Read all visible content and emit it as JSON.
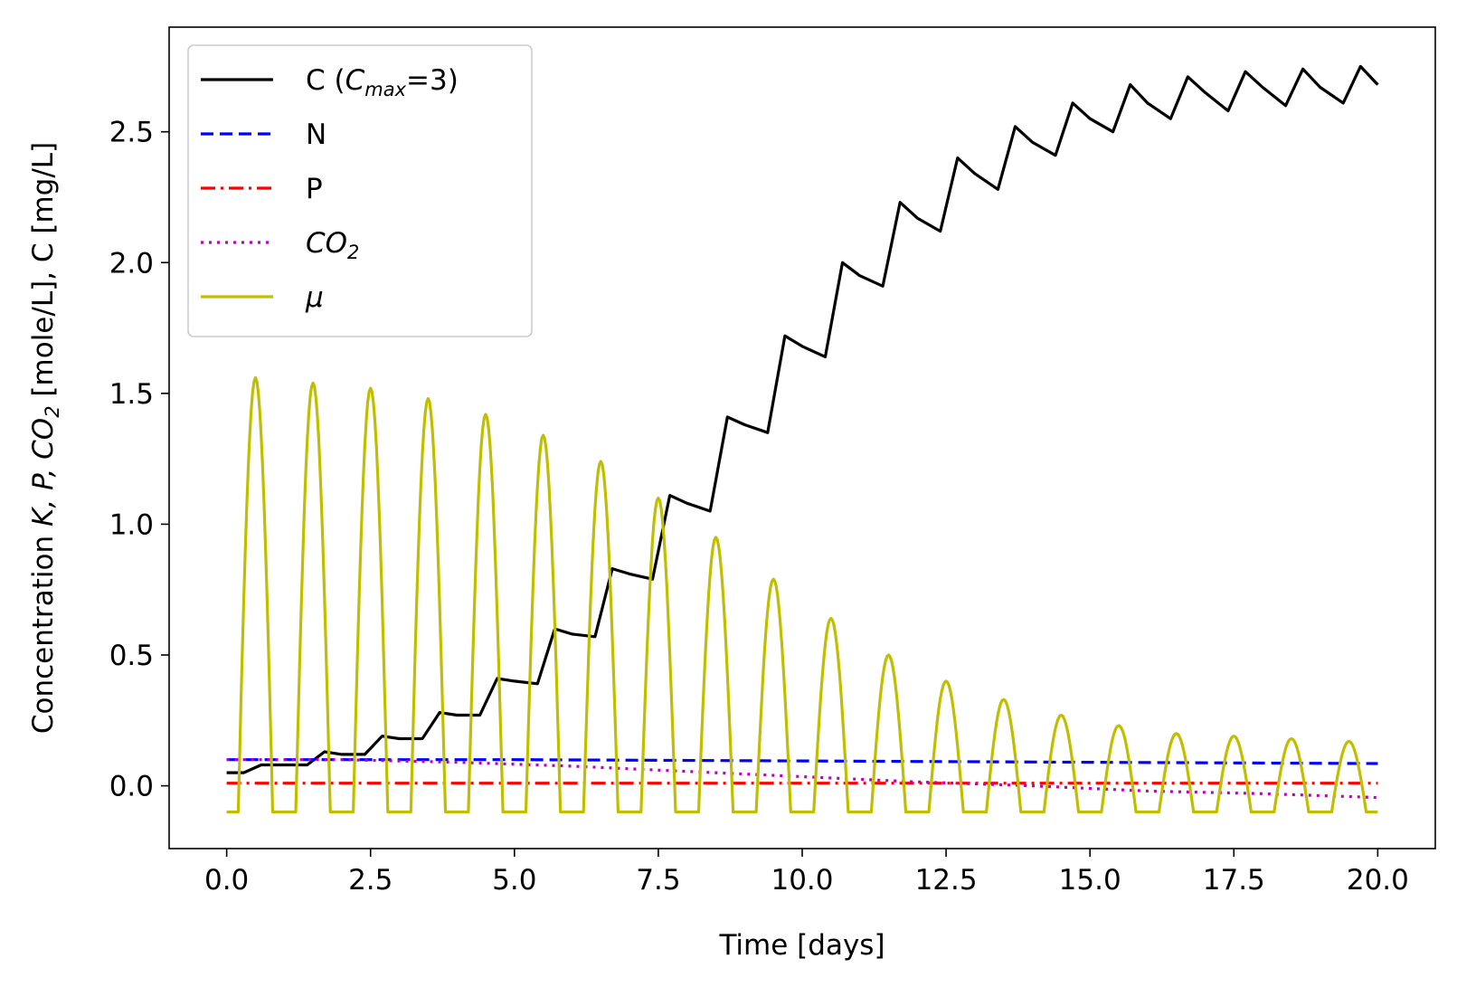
{
  "chart_data": {
    "type": "line",
    "xlabel": "Time [days]",
    "ylabel": {
      "prefix": "Concentration ",
      "math": "K, P, CO",
      "sub": "2",
      "suffix": " [mole/L], C [mg/L]"
    },
    "xlim": [
      -1.0,
      21.0
    ],
    "ylim": [
      -0.24,
      2.9
    ],
    "x_ticks": [
      {
        "value": 0.0,
        "label": "0.0"
      },
      {
        "value": 2.5,
        "label": "2.5"
      },
      {
        "value": 5.0,
        "label": "5.0"
      },
      {
        "value": 7.5,
        "label": "7.5"
      },
      {
        "value": 10.0,
        "label": "10.0"
      },
      {
        "value": 12.5,
        "label": "12.5"
      },
      {
        "value": 15.0,
        "label": "15.0"
      },
      {
        "value": 17.5,
        "label": "17.5"
      },
      {
        "value": 20.0,
        "label": "20.0"
      }
    ],
    "y_ticks": [
      {
        "value": 0.0,
        "label": "0.0"
      },
      {
        "value": 0.5,
        "label": "0.5"
      },
      {
        "value": 1.0,
        "label": "1.0"
      },
      {
        "value": 1.5,
        "label": "1.5"
      },
      {
        "value": 2.0,
        "label": "2.0"
      },
      {
        "value": 2.5,
        "label": "2.5"
      }
    ],
    "grid": false,
    "legend_position": "top-left",
    "series": [
      {
        "key": "C",
        "legend": {
          "prefix": "C (",
          "math": "C",
          "sub": "max",
          "suffix": "=3)"
        },
        "color": "#000000",
        "style": "solid",
        "x": [
          0,
          0.3,
          0.6,
          1.0,
          1.4,
          1.7,
          2.0,
          2.4,
          2.7,
          3.0,
          3.4,
          3.7,
          4.0,
          4.4,
          4.7,
          5.0,
          5.4,
          5.7,
          6.0,
          6.4,
          6.7,
          7.0,
          7.4,
          7.7,
          8.0,
          8.4,
          8.7,
          9.0,
          9.4,
          9.7,
          10.0,
          10.4,
          10.7,
          11.0,
          11.4,
          11.7,
          12.0,
          12.4,
          12.7,
          13.0,
          13.4,
          13.7,
          14.0,
          14.4,
          14.7,
          15.0,
          15.4,
          15.7,
          16.0,
          16.4,
          16.7,
          17.0,
          17.4,
          17.7,
          18.0,
          18.4,
          18.7,
          19.0,
          19.4,
          19.7,
          20.0
        ],
        "y": [
          0.05,
          0.05,
          0.08,
          0.08,
          0.08,
          0.13,
          0.12,
          0.12,
          0.19,
          0.18,
          0.18,
          0.28,
          0.27,
          0.27,
          0.41,
          0.4,
          0.39,
          0.6,
          0.58,
          0.57,
          0.83,
          0.81,
          0.79,
          1.11,
          1.08,
          1.05,
          1.41,
          1.38,
          1.35,
          1.72,
          1.68,
          1.64,
          2.0,
          1.95,
          1.91,
          2.23,
          2.17,
          2.12,
          2.4,
          2.34,
          2.28,
          2.52,
          2.46,
          2.41,
          2.61,
          2.55,
          2.5,
          2.68,
          2.61,
          2.55,
          2.71,
          2.65,
          2.58,
          2.73,
          2.67,
          2.6,
          2.74,
          2.67,
          2.61,
          2.75,
          2.68
        ]
      },
      {
        "key": "N",
        "legend": {
          "prefix": "N",
          "math": "",
          "sub": "",
          "suffix": ""
        },
        "color": "#0000ff",
        "style": "dashed",
        "x": [
          0,
          5,
          10,
          15,
          20
        ],
        "y": [
          0.1,
          0.1,
          0.095,
          0.09,
          0.085
        ]
      },
      {
        "key": "P",
        "legend": {
          "prefix": "P",
          "math": "",
          "sub": "",
          "suffix": ""
        },
        "color": "#ff0000",
        "style": "dashdot",
        "x": [
          0,
          20
        ],
        "y": [
          0.01,
          0.01
        ]
      },
      {
        "key": "CO2",
        "legend": {
          "prefix": "",
          "math": "CO",
          "sub": "2",
          "suffix": ""
        },
        "color": "#bf00bf",
        "style": "dotted",
        "x": [
          0,
          2,
          4,
          6,
          8,
          10,
          12,
          14,
          16,
          18,
          20
        ],
        "y": [
          0.1,
          0.1,
          0.09,
          0.075,
          0.055,
          0.035,
          0.015,
          0.0,
          -0.02,
          -0.03,
          -0.045
        ]
      },
      {
        "key": "mu",
        "legend": {
          "prefix": "",
          "math": "μ",
          "sub": "",
          "suffix": ""
        },
        "color": "#bfbf00",
        "style": "solid",
        "baseline": -0.1,
        "period": 1.0,
        "cycles": 20,
        "off_start": 0.0,
        "off_end": 0.2,
        "on_end": 0.8,
        "peak_at": 0.5,
        "peaks": [
          1.56,
          1.54,
          1.52,
          1.48,
          1.42,
          1.34,
          1.24,
          1.1,
          0.95,
          0.79,
          0.64,
          0.5,
          0.4,
          0.33,
          0.27,
          0.23,
          0.2,
          0.19,
          0.18,
          0.17
        ]
      }
    ]
  }
}
